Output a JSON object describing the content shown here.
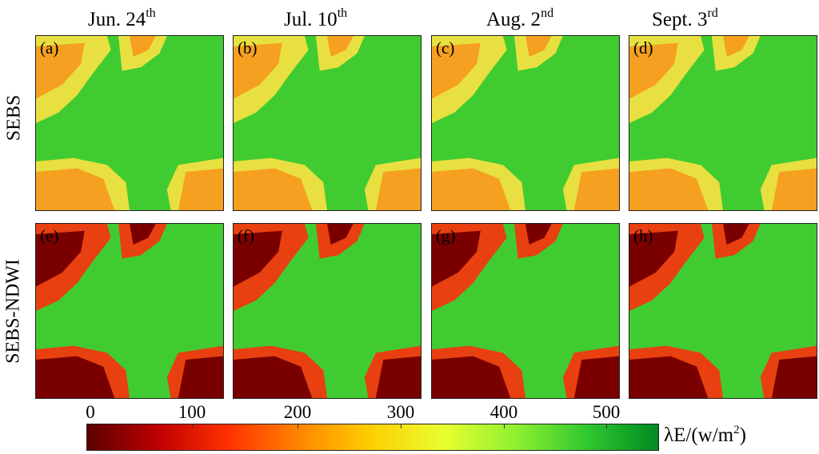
{
  "columns": [
    {
      "date": "Jun. 24",
      "sup": "th"
    },
    {
      "date": "Jul. 10",
      "sup": "th"
    },
    {
      "date": "Aug. 2",
      "sup": "nd"
    },
    {
      "date": "Sept. 3",
      "sup": "rd"
    }
  ],
  "rows": [
    "SEBS",
    "SEBS-NDWI"
  ],
  "panels": [
    "(a)",
    "(b)",
    "(c)",
    "(d)",
    "(e)",
    "(f)",
    "(g)",
    "(h)"
  ],
  "colorbar": {
    "ticks": [
      "0",
      "100",
      "200",
      "300",
      "400",
      "500"
    ],
    "unit_prefix": "λE/(w/m",
    "unit_sup": "2",
    "unit_suffix": ")",
    "colors": [
      "#5a0000",
      "#c00000",
      "#ff3300",
      "#ff8800",
      "#ffd000",
      "#e8ff30",
      "#90f030",
      "#30c830",
      "#008a20"
    ]
  },
  "palette": {
    "sebs_dry": "#f5a020",
    "sebs_mid": "#e8e040",
    "sebs_wet": "#40cc30",
    "ndwi_dry": "#7a0000",
    "ndwi_mid": "#e84010",
    "ndwi_wet": "#40cc30"
  }
}
